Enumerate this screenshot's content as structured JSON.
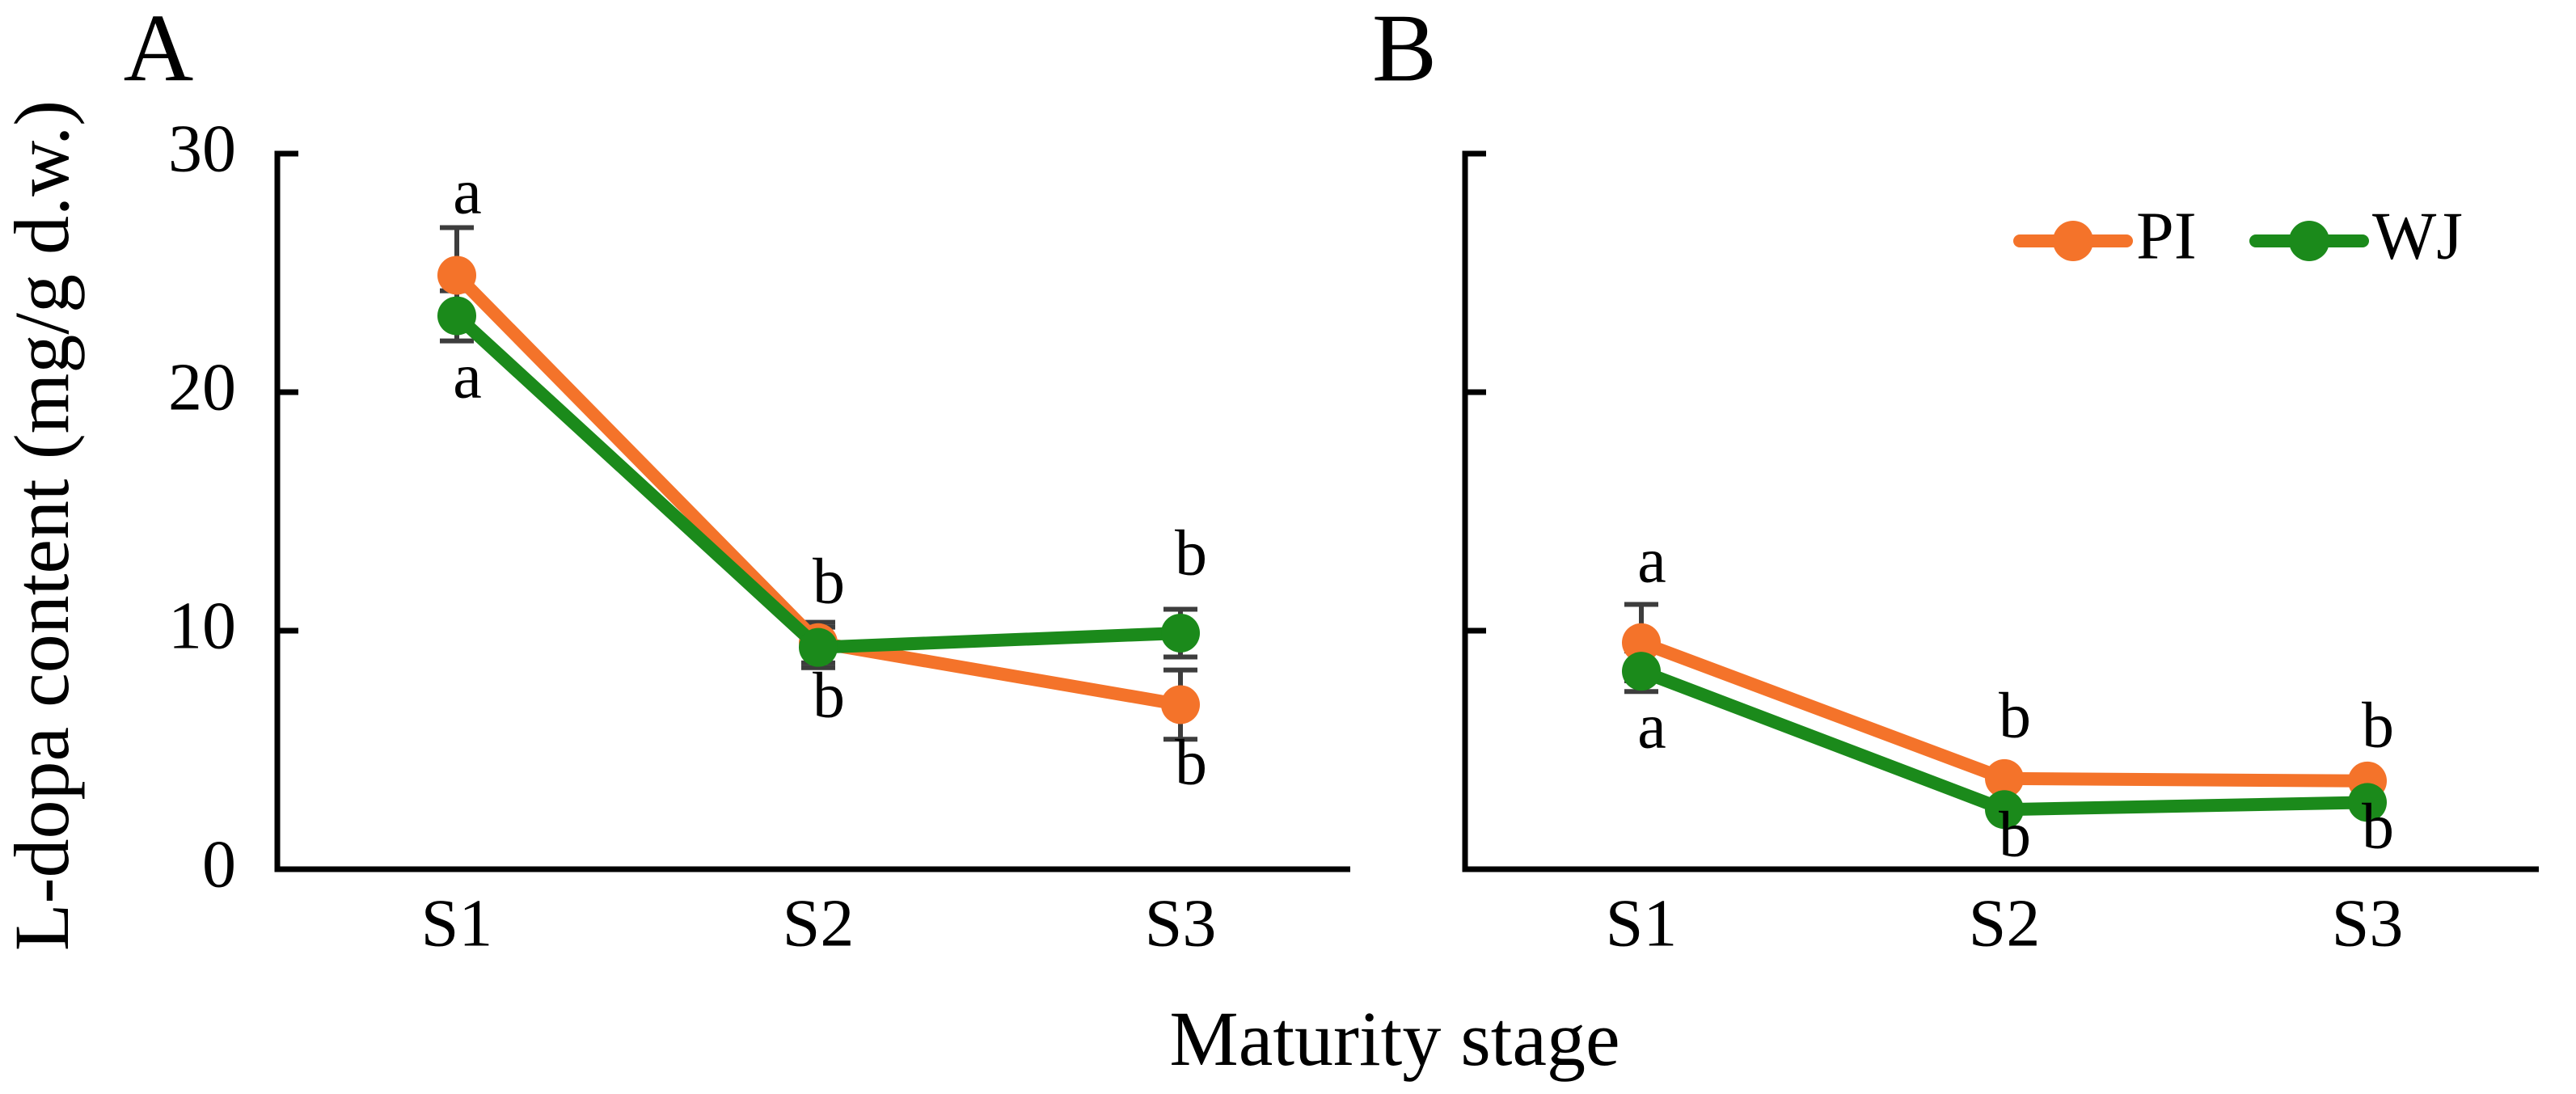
{
  "figure": {
    "y_axis_title": "L-dopa content (mg/g d.w.)",
    "x_axis_title": "Maturity stage",
    "categories": [
      "S1",
      "S2",
      "S3"
    ],
    "y_tick_labels": [
      "0",
      "10",
      "20",
      "30"
    ],
    "legend": {
      "items": [
        {
          "label": "PI",
          "color": "#F4732A"
        },
        {
          "label": "WJ",
          "color": "#1B8A1B"
        }
      ]
    },
    "colors": {
      "pi_orange": "#F4732A",
      "wj_green": "#1B8A1B",
      "error_bar": "#3d3d3d",
      "axis": "#000000"
    }
  },
  "chart_data": [
    {
      "type": "line",
      "panel_label": "A",
      "categories": [
        "S1",
        "S2",
        "S3"
      ],
      "xlabel": "Maturity stage",
      "ylabel": "L-dopa content (mg/g d.w.)",
      "ylim": [
        0,
        30
      ],
      "yticks": [
        0,
        10,
        20,
        30
      ],
      "show_y_tick_labels": true,
      "show_legend": false,
      "grid": false,
      "series": [
        {
          "name": "PI",
          "color": "#F4732A",
          "values": [
            24.9,
            9.5,
            6.9
          ],
          "errors": [
            2.0,
            0.85,
            1.45
          ]
        },
        {
          "name": "WJ",
          "color": "#1B8A1B",
          "values": [
            23.2,
            9.3,
            9.9
          ],
          "errors": [
            1.05,
            0.85,
            1.0
          ]
        }
      ],
      "sig_letters": [
        {
          "cat": "S1",
          "above": "a",
          "above_y": 245,
          "below": "a",
          "below_y": 473
        },
        {
          "cat": "S2",
          "above": "b",
          "above_y": 727,
          "below": "b",
          "below_y": 868
        },
        {
          "cat": "S3",
          "above": "b",
          "above_y": 692,
          "below": "b",
          "below_y": 951
        }
      ]
    },
    {
      "type": "line",
      "panel_label": "B",
      "categories": [
        "S1",
        "S2",
        "S3"
      ],
      "xlabel": "Maturity stage",
      "ylabel": "",
      "ylim": [
        0,
        30
      ],
      "yticks": [
        0,
        10,
        20,
        30
      ],
      "show_y_tick_labels": false,
      "show_legend": true,
      "grid": false,
      "series": [
        {
          "name": "PI",
          "color": "#F4732A",
          "values": [
            9.5,
            3.8,
            3.7
          ],
          "errors": [
            1.6,
            0,
            0
          ]
        },
        {
          "name": "WJ",
          "color": "#1B8A1B",
          "values": [
            8.3,
            2.5,
            2.8
          ],
          "errors": [
            0.85,
            0,
            0
          ]
        }
      ],
      "sig_letters": [
        {
          "cat": "S1",
          "above": "a",
          "above_y": 701,
          "below": "a",
          "below_y": 906
        },
        {
          "cat": "S2",
          "above": "b",
          "above_y": 893,
          "below": "b",
          "below_y": 1040
        },
        {
          "cat": "S3",
          "above": "b",
          "above_y": 905,
          "below": "b",
          "below_y": 1030
        }
      ]
    }
  ]
}
